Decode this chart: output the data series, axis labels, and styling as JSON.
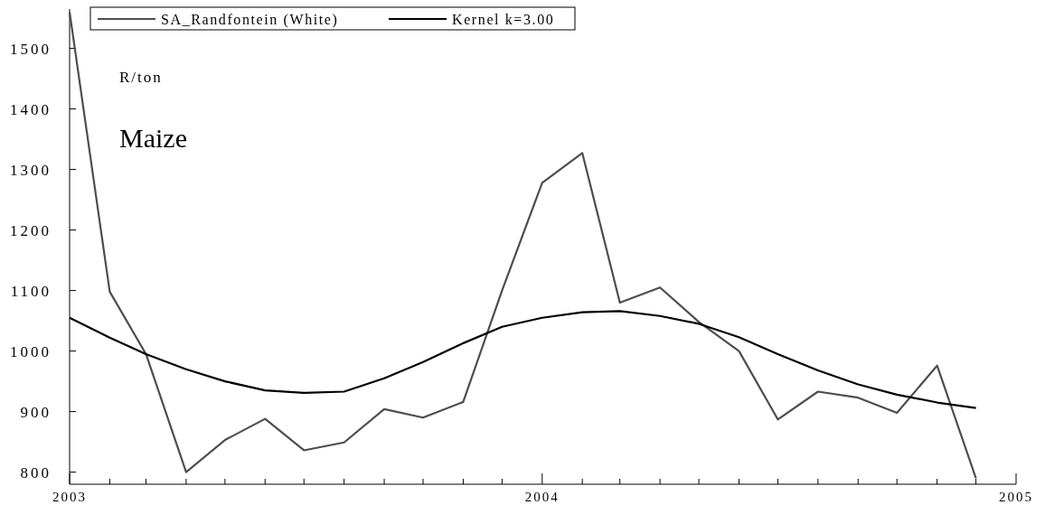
{
  "chart_data": {
    "type": "line",
    "title": "Maize",
    "ylabel": "R/ton",
    "x": [
      "2003-01",
      "2003-02",
      "2003-03",
      "2003-04",
      "2003-05",
      "2003-06",
      "2003-07",
      "2003-08",
      "2003-09",
      "2003-10",
      "2003-11",
      "2003-12",
      "2004-01",
      "2004-02",
      "2004-03",
      "2004-04",
      "2004-05",
      "2004-06",
      "2004-07",
      "2004-08",
      "2004-09",
      "2004-10",
      "2004-11",
      "2004-12"
    ],
    "series": [
      {
        "name": "SA_Randfontein (White)",
        "color": "#4d4d4d",
        "values": [
          1560,
          1098,
          995,
          800,
          853,
          888,
          836,
          849,
          904,
          890,
          916,
          1100,
          1278,
          1327,
          1080,
          1105,
          1048,
          1000,
          887,
          933,
          923,
          898,
          976,
          790
        ]
      },
      {
        "name": "Kernel k=3.00",
        "color": "#000000",
        "values": [
          1055,
          1022,
          995,
          970,
          950,
          935,
          931,
          933,
          955,
          982,
          1013,
          1040,
          1055,
          1064,
          1066,
          1058,
          1045,
          1023,
          995,
          968,
          945,
          928,
          915,
          906
        ]
      }
    ],
    "xlim": [
      "2003-01",
      "2005-01"
    ],
    "xticks": [
      {
        "value": "2003-01",
        "label": "2003"
      },
      {
        "value": "2003-02",
        "label": null
      },
      {
        "value": "2003-03",
        "label": null
      },
      {
        "value": "2003-04",
        "label": null
      },
      {
        "value": "2003-05",
        "label": null
      },
      {
        "value": "2003-06",
        "label": null
      },
      {
        "value": "2003-07",
        "label": null
      },
      {
        "value": "2003-08",
        "label": null
      },
      {
        "value": "2003-09",
        "label": null
      },
      {
        "value": "2003-10",
        "label": null
      },
      {
        "value": "2003-11",
        "label": null
      },
      {
        "value": "2003-12",
        "label": null
      },
      {
        "value": "2004-01",
        "label": "2004"
      },
      {
        "value": "2004-02",
        "label": null
      },
      {
        "value": "2004-03",
        "label": null
      },
      {
        "value": "2004-04",
        "label": null
      },
      {
        "value": "2004-05",
        "label": null
      },
      {
        "value": "2004-06",
        "label": null
      },
      {
        "value": "2004-07",
        "label": null
      },
      {
        "value": "2004-08",
        "label": null
      },
      {
        "value": "2004-09",
        "label": null
      },
      {
        "value": "2004-10",
        "label": null
      },
      {
        "value": "2004-11",
        "label": null
      },
      {
        "value": "2004-12",
        "label": null
      },
      {
        "value": "2005-01",
        "label": "2005"
      }
    ],
    "ylim": [
      780,
      1565
    ],
    "yticks": [
      800,
      900,
      1000,
      1100,
      1200,
      1300,
      1400,
      1500
    ],
    "grid": false,
    "legend": "top left",
    "line_style": "solid",
    "marker": "none"
  }
}
